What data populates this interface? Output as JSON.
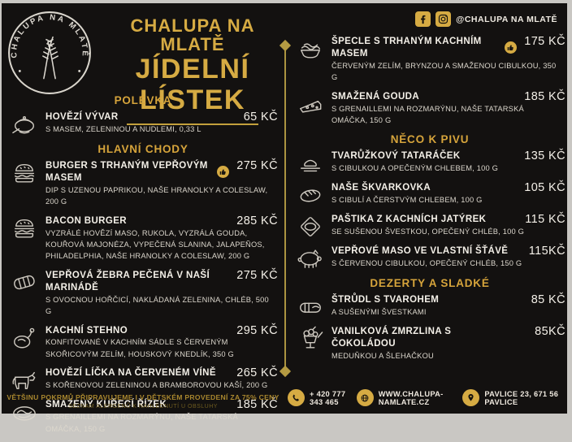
{
  "brand": {
    "logo_text": "CHALUPA NA MLATĚ",
    "title": "CHALUPA NA MLATĚ",
    "subtitle": "JÍDELNÍ LÍSTEK"
  },
  "social": {
    "handle": "@CHALUPA NA MLATĚ",
    "icons": [
      "facebook-icon",
      "instagram-icon"
    ]
  },
  "colors": {
    "gold": "#d6ab43",
    "background": "#131110",
    "text": "#efeae1",
    "frame": "#c9c7c3"
  },
  "columns": {
    "left": {
      "sections": [
        {
          "heading": "POLÉVKA",
          "items": [
            {
              "icon": "soup",
              "name": "HOVĚZÍ VÝVAR",
              "desc": "S MASEM, ZELENINOU A NUDLEMI, 0,33 L",
              "price": "65 KČ",
              "badge": null
            }
          ]
        },
        {
          "heading": "HLAVNÍ CHODY",
          "items": [
            {
              "icon": "burger",
              "name": "BURGER S TRHANÝM VEPŘOVÝM MASEM",
              "desc": "DIP S UZENOU PAPRIKOU, NAŠE HRANOLKY A COLESLAW, 200 G",
              "price": "275 KČ",
              "badge": "thumbs-up"
            },
            {
              "icon": "burger",
              "name": "BACON BURGER",
              "desc": "VYZRÁLÉ HOVĚZÍ MASO, RUKOLA, VYZRÁLÁ GOUDA, KOUŘOVÁ MAJONÉZA, VYPEČENÁ SLANINA, JALAPEÑOS, PHILADELPHIA, NAŠE HRANOLKY A COLESLAW, 200 G",
              "price": "285 KČ",
              "badge": null
            },
            {
              "icon": "ribs",
              "name": "VEPŘOVÁ ŽEBRA PEČENÁ V NAŠÍ MARINÁDĚ",
              "desc": "S OVOCNOU HOŘČICÍ, NAKLÁDANÁ ZELENINA, CHLÉB, 500 G",
              "price": "275 KČ",
              "badge": null
            },
            {
              "icon": "duck",
              "name": "KACHNÍ STEHNO",
              "desc": "KONFITOVANÉ V KACHNÍM SÁDLE S ČERVENÝM SKOŘICOVÝM ZELÍM, HOUSKOVÝ KNEDLÍK, 350 G",
              "price": "295 KČ",
              "badge": null
            },
            {
              "icon": "cow",
              "name": "HOVĚZÍ LÍČKA NA ČERVENÉM VÍNĚ",
              "desc": "S KOŘENOVOU ZELENINOU A BRAMBOROVOU KAŠÍ, 200 G",
              "price": "265 KČ",
              "badge": null
            },
            {
              "icon": "schnitzel",
              "name": "SMAŽENÝ KUŘECÍ ŘÍZEK",
              "desc": "S GRENAILLEMI NA ROZMARÝNU, NAŠE TATARSKÁ OMÁČKA, 150 G",
              "price": "185 KČ",
              "badge": null
            }
          ]
        }
      ]
    },
    "right": {
      "sections": [
        {
          "heading": "",
          "items": [
            {
              "icon": "spaetzle",
              "name": "ŠPECLE S TRHANÝM KACHNÍM MASEM",
              "desc": "ČERVENÝM ZELÍM, BRYNZOU A SMAŽENOU CIBULKOU, 350 G",
              "price": "175 KČ",
              "badge": "thumbs-up"
            },
            {
              "icon": "cheese",
              "name": "SMAŽENÁ GOUDA",
              "desc": "S GRENAILLEMI NA ROZMARÝNU, NAŠE TATARSKÁ OMÁČKA, 150 G",
              "price": "185 KČ",
              "badge": null
            }
          ]
        },
        {
          "heading": "NĚCO K PIVU",
          "items": [
            {
              "icon": "tartare",
              "name": "TVARŮŽKOVÝ TATARÁČEK",
              "desc": "S CIBULKOU A OPEČENÝM CHLEBEM, 100 G",
              "price": "135 KČ",
              "badge": null
            },
            {
              "icon": "bread",
              "name": "NAŠE ŠKVARKOVKA",
              "desc": "S CIBULÍ A ČERSTVÝM CHLEBEM, 100 G",
              "price": "105 KČ",
              "badge": null
            },
            {
              "icon": "pate",
              "name": "PAŠTIKA Z KACHNÍCH JATÝREK",
              "desc": "SE SUŠENOU ŠVESTKOU, OPEČENÝ CHLÉB, 100 G",
              "price": "115 KČ",
              "badge": null
            },
            {
              "icon": "pig",
              "name": "VEPŘOVÉ MASO VE VLASTNÍ ŠŤÁVĚ",
              "desc": "S ČERVENOU CIBULKOU, OPEČENÝ CHLÉB, 150 G",
              "price": "115KČ",
              "badge": null
            }
          ]
        },
        {
          "heading": "DEZERTY A SLADKÉ",
          "items": [
            {
              "icon": "strudel",
              "name": "ŠTRŮDL S TVAROHEM",
              "desc": "A SUŠENÝMI ŠVESTKAMI",
              "price": "85 KČ",
              "badge": null
            },
            {
              "icon": "sundae",
              "name": "VANILKOVÁ ZMRZLINA S ČOKOLÁDOU",
              "desc": "MEDUŇKOU A ŠLEHAČKOU",
              "price": "85KČ",
              "badge": null
            }
          ]
        }
      ]
    }
  },
  "footer_left": {
    "line1": "VĚTŠINU POKRMŮ PŘIPRAVUJEME I V DĚTSKÉM PROVEDENÍ ZA 75% CENY",
    "line2": "SEZNAM ALERGENŮ K NAHLÉDNUTÍ U OBSLUHY"
  },
  "footer_right": {
    "phone": "+ 420 777 343 465",
    "website": "WWW.CHALUPA-NAMLATE.CZ",
    "address": "PAVLICE 23, 671 56 PAVLICE"
  }
}
